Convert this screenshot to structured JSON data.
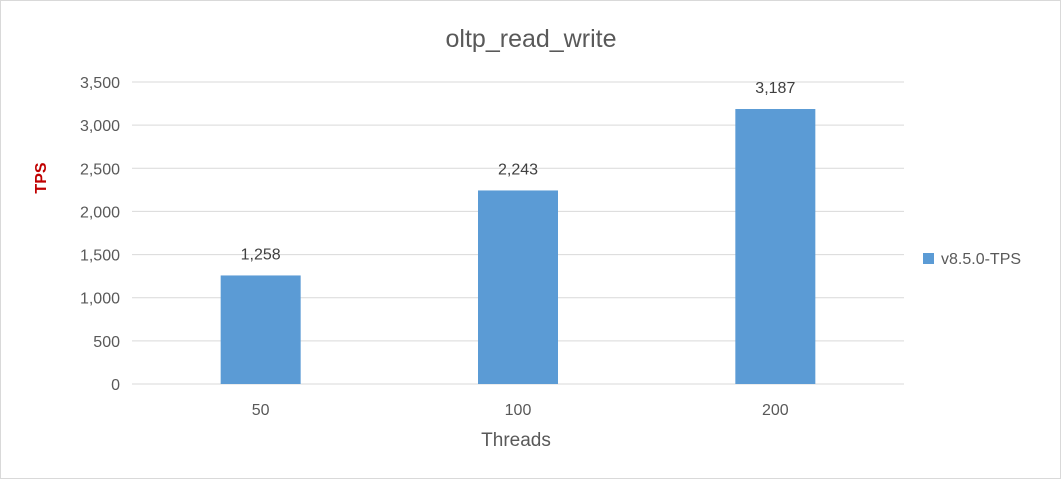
{
  "chart_data": {
    "type": "bar",
    "title": "oltp_read_write",
    "xlabel": "Threads",
    "ylabel": "TPS",
    "categories": [
      "50",
      "100",
      "200"
    ],
    "series": [
      {
        "name": "v8.5.0-TPS",
        "values": [
          1258,
          2243,
          3187
        ]
      }
    ],
    "data_labels": [
      "1,258",
      "2,243",
      "3,187"
    ],
    "ylim": [
      0,
      3500
    ],
    "yticks": [
      0,
      500,
      1000,
      1500,
      2000,
      2500,
      3000,
      3500
    ],
    "ytick_labels": [
      "0",
      "500",
      "1,000",
      "1,500",
      "2,000",
      "2,500",
      "3,000",
      "3,500"
    ],
    "grid": true,
    "legend_position": "right",
    "colors": {
      "bar": "#5b9bd5",
      "grid": "#d9d9d9",
      "ylabel": "#c00000"
    }
  }
}
